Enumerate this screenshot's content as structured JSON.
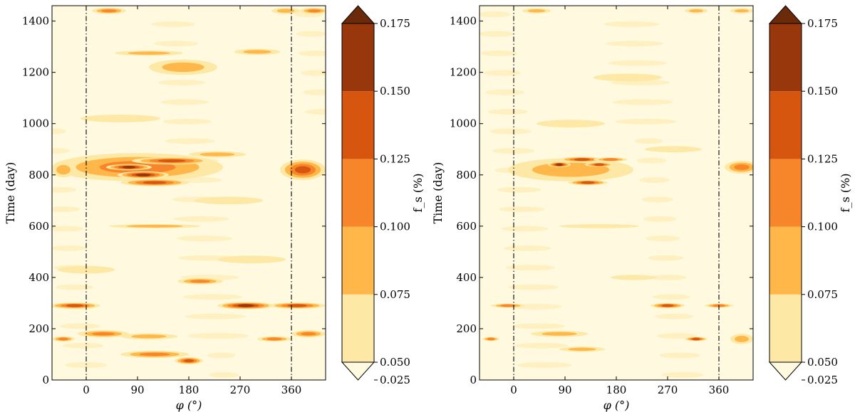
{
  "chart_data": [
    {
      "type": "heatmap",
      "subtype": "filled-contour",
      "xlabel": "φ (°)",
      "ylabel": "Time (day)",
      "xlim": [
        -60,
        420
      ],
      "ylim": [
        0,
        1460
      ],
      "xticks": [
        0,
        90,
        180,
        270,
        360
      ],
      "xtick_labels": [
        "0",
        "90",
        "180",
        "270",
        "360"
      ],
      "yticks": [
        0,
        200,
        400,
        600,
        800,
        1000,
        1200,
        1400
      ],
      "ytick_labels": [
        "0",
        "200",
        "400",
        "600",
        "800",
        "1000",
        "1200",
        "1400"
      ],
      "reference_lines_x": [
        0,
        360
      ],
      "colorbar": {
        "label": "f_s (%)",
        "levels": [
          0.025,
          0.05,
          0.075,
          0.1,
          0.125,
          0.15,
          0.175
        ],
        "tick_labels": [
          "0.025",
          "0.050",
          "0.075",
          "0.100",
          "0.125",
          "0.150",
          "0.175"
        ],
        "colors": [
          "#fffadf",
          "#fee8a6",
          "#feb748",
          "#f7862b",
          "#d6560f",
          "#98370c",
          "#6b2a0a"
        ],
        "extend": "both"
      },
      "features": [
        {
          "phi": 90,
          "t": 830,
          "dphi": 150,
          "dt": 55,
          "level": 3
        },
        {
          "phi": 100,
          "t": 800,
          "dphi": 45,
          "dt": 14,
          "level": 5
        },
        {
          "phi": 75,
          "t": 830,
          "dphi": 40,
          "dt": 12,
          "level": 5
        },
        {
          "phi": 150,
          "t": 855,
          "dphi": 70,
          "dt": 14,
          "level": 4
        },
        {
          "phi": 120,
          "t": 770,
          "dphi": 60,
          "dt": 14,
          "level": 4
        },
        {
          "phi": 380,
          "t": 820,
          "dphi": 40,
          "dt": 40,
          "level": 4
        },
        {
          "phi": -40,
          "t": 820,
          "dphi": 20,
          "dt": 30,
          "level": 2
        },
        {
          "phi": 280,
          "t": 290,
          "dphi": 50,
          "dt": 14,
          "level": 5
        },
        {
          "phi": 370,
          "t": 290,
          "dphi": 50,
          "dt": 12,
          "level": 4
        },
        {
          "phi": -20,
          "t": 290,
          "dphi": 45,
          "dt": 12,
          "level": 4
        },
        {
          "phi": 200,
          "t": 385,
          "dphi": 40,
          "dt": 12,
          "level": 3
        },
        {
          "phi": 30,
          "t": 180,
          "dphi": 45,
          "dt": 14,
          "level": 3
        },
        {
          "phi": 110,
          "t": 170,
          "dphi": 50,
          "dt": 12,
          "level": 2
        },
        {
          "phi": 180,
          "t": 75,
          "dphi": 25,
          "dt": 14,
          "level": 4
        },
        {
          "phi": 120,
          "t": 100,
          "dphi": 60,
          "dt": 14,
          "level": 3
        },
        {
          "phi": 330,
          "t": 160,
          "dphi": 30,
          "dt": 10,
          "level": 3
        },
        {
          "phi": -40,
          "t": 160,
          "dphi": 20,
          "dt": 10,
          "level": 3
        },
        {
          "phi": 390,
          "t": 180,
          "dphi": 30,
          "dt": 14,
          "level": 3
        },
        {
          "phi": 40,
          "t": 1440,
          "dphi": 30,
          "dt": 12,
          "level": 3
        },
        {
          "phi": 400,
          "t": 1440,
          "dphi": 25,
          "dt": 12,
          "level": 3
        },
        {
          "phi": 350,
          "t": 1440,
          "dphi": 25,
          "dt": 12,
          "level": 2
        },
        {
          "phi": 170,
          "t": 1220,
          "dphi": 60,
          "dt": 30,
          "level": 2
        },
        {
          "phi": 110,
          "t": 1275,
          "dphi": 60,
          "dt": 10,
          "level": 2
        },
        {
          "phi": 300,
          "t": 1280,
          "dphi": 40,
          "dt": 12,
          "level": 2
        },
        {
          "phi": 120,
          "t": 600,
          "dphi": 80,
          "dt": 8,
          "level": 2
        },
        {
          "phi": 230,
          "t": 880,
          "dphi": 50,
          "dt": 12,
          "level": 2
        },
        {
          "phi": 290,
          "t": 470,
          "dphi": 60,
          "dt": 15,
          "level": 1
        },
        {
          "phi": 60,
          "t": 1020,
          "dphi": 70,
          "dt": 15,
          "level": 1
        },
        {
          "phi": 250,
          "t": 700,
          "dphi": 60,
          "dt": 15,
          "level": 1
        },
        {
          "phi": 0,
          "t": 430,
          "dphi": 50,
          "dt": 15,
          "level": 1
        }
      ]
    },
    {
      "type": "heatmap",
      "subtype": "filled-contour",
      "xlabel": "φ (°)",
      "ylabel": "Time (day)",
      "xlim": [
        -60,
        420
      ],
      "ylim": [
        0,
        1460
      ],
      "xticks": [
        0,
        90,
        180,
        270,
        360
      ],
      "xtick_labels": [
        "0",
        "90",
        "180",
        "270",
        "360"
      ],
      "yticks": [
        0,
        200,
        400,
        600,
        800,
        1000,
        1200,
        1400
      ],
      "ytick_labels": [
        "0",
        "200",
        "400",
        "600",
        "800",
        "1000",
        "1200",
        "1400"
      ],
      "reference_lines_x": [
        0,
        360
      ],
      "colorbar": {
        "label": "f_s (%)",
        "levels": [
          0.025,
          0.05,
          0.075,
          0.1,
          0.125,
          0.15,
          0.175
        ],
        "tick_labels": [
          "0.025",
          "0.050",
          "0.075",
          "0.100",
          "0.125",
          "0.150",
          "0.175"
        ],
        "colors": [
          "#fffadf",
          "#fee8a6",
          "#feb748",
          "#f7862b",
          "#d6560f",
          "#98370c",
          "#6b2a0a"
        ],
        "extend": "both"
      },
      "features": [
        {
          "phi": 100,
          "t": 820,
          "dphi": 110,
          "dt": 45,
          "level": 2
        },
        {
          "phi": 80,
          "t": 840,
          "dphi": 20,
          "dt": 10,
          "level": 5
        },
        {
          "phi": 120,
          "t": 860,
          "dphi": 40,
          "dt": 10,
          "level": 4
        },
        {
          "phi": 150,
          "t": 840,
          "dphi": 25,
          "dt": 8,
          "level": 4
        },
        {
          "phi": 130,
          "t": 770,
          "dphi": 35,
          "dt": 10,
          "level": 4
        },
        {
          "phi": 170,
          "t": 860,
          "dphi": 30,
          "dt": 8,
          "level": 3
        },
        {
          "phi": 400,
          "t": 830,
          "dphi": 30,
          "dt": 25,
          "level": 3
        },
        {
          "phi": 270,
          "t": 290,
          "dphi": 30,
          "dt": 10,
          "level": 4
        },
        {
          "phi": 360,
          "t": 290,
          "dphi": 25,
          "dt": 8,
          "level": 3
        },
        {
          "phi": -10,
          "t": 290,
          "dphi": 30,
          "dt": 8,
          "level": 3
        },
        {
          "phi": 320,
          "t": 160,
          "dphi": 20,
          "dt": 8,
          "level": 4
        },
        {
          "phi": -40,
          "t": 160,
          "dphi": 15,
          "dt": 8,
          "level": 3
        },
        {
          "phi": 80,
          "t": 180,
          "dphi": 50,
          "dt": 12,
          "level": 2
        },
        {
          "phi": 120,
          "t": 120,
          "dphi": 40,
          "dt": 10,
          "level": 2
        },
        {
          "phi": 400,
          "t": 160,
          "dphi": 20,
          "dt": 20,
          "level": 2
        },
        {
          "phi": 40,
          "t": 1440,
          "dphi": 25,
          "dt": 10,
          "level": 2
        },
        {
          "phi": 320,
          "t": 1440,
          "dphi": 20,
          "dt": 10,
          "level": 2
        },
        {
          "phi": 400,
          "t": 1440,
          "dphi": 20,
          "dt": 10,
          "level": 2
        },
        {
          "phi": 210,
          "t": 400,
          "dphi": 40,
          "dt": 10,
          "level": 1
        },
        {
          "phi": 150,
          "t": 600,
          "dphi": 70,
          "dt": 8,
          "level": 1
        },
        {
          "phi": 200,
          "t": 1180,
          "dphi": 60,
          "dt": 15,
          "level": 1
        },
        {
          "phi": 100,
          "t": 1000,
          "dphi": 60,
          "dt": 15,
          "level": 1
        },
        {
          "phi": 280,
          "t": 900,
          "dphi": 50,
          "dt": 12,
          "level": 1
        }
      ]
    }
  ]
}
